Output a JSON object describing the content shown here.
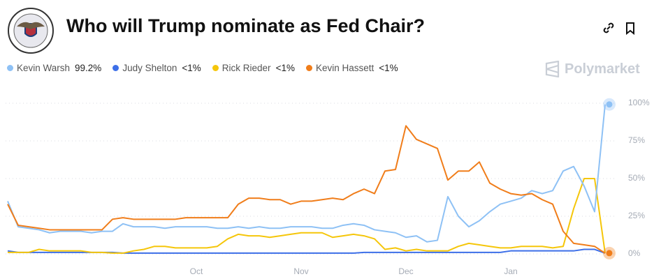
{
  "header": {
    "title": "Who will Trump nominate as Fed Chair?",
    "brand": "Polymarket"
  },
  "chart_data": {
    "type": "line",
    "categories": [
      null,
      null,
      null,
      null,
      null,
      null,
      null,
      null,
      null,
      null,
      null,
      null,
      null,
      null,
      null,
      null,
      null,
      null,
      "Oct",
      null,
      null,
      null,
      null,
      null,
      null,
      null,
      null,
      null,
      "Nov",
      null,
      null,
      null,
      null,
      null,
      null,
      null,
      null,
      null,
      "Dec",
      null,
      null,
      null,
      null,
      null,
      null,
      null,
      null,
      null,
      "Jan",
      null,
      null,
      null,
      null,
      null,
      null,
      null,
      null,
      null
    ],
    "series": [
      {
        "name": "Kevin Warsh",
        "value_label": "99.2%",
        "color": "#8ec1f5",
        "values": [
          35,
          18,
          17,
          16,
          14,
          15,
          15,
          15,
          14,
          15,
          15,
          20,
          18,
          18,
          18,
          17,
          18,
          18,
          18,
          18,
          17,
          17,
          18,
          17,
          18,
          17,
          17,
          18,
          18,
          18,
          17,
          17,
          19,
          20,
          19,
          16,
          15,
          14,
          11,
          12,
          8,
          9,
          38,
          25,
          18,
          22,
          28,
          33,
          35,
          37,
          42,
          40,
          42,
          55,
          58,
          45,
          28,
          99.2
        ]
      },
      {
        "name": "Judy Shelton",
        "value_label": "<1%",
        "color": "#3d6fe8",
        "values": [
          2,
          1,
          1,
          1,
          1,
          1,
          1,
          1,
          1,
          1,
          1,
          0.5,
          0.5,
          0.5,
          0.5,
          0.5,
          0.5,
          0.5,
          0.5,
          0.5,
          0.5,
          0.5,
          0.5,
          0.5,
          0.5,
          0.5,
          0.5,
          0.5,
          0.5,
          0.5,
          0.5,
          0.5,
          0.5,
          0.5,
          1,
          1,
          1,
          1,
          1,
          1,
          1,
          1,
          1,
          1,
          1,
          1,
          1,
          1,
          2,
          2,
          2,
          2,
          2,
          2,
          2,
          3,
          3,
          0.5
        ]
      },
      {
        "name": "Rick Rieder",
        "value_label": "<1%",
        "color": "#f5c60a",
        "values": [
          1,
          1,
          1,
          3,
          2,
          2,
          2,
          2,
          1,
          1,
          0.5,
          0.5,
          2,
          3,
          5,
          5,
          4,
          4,
          4,
          4,
          5,
          10,
          13,
          12,
          12,
          11,
          12,
          13,
          14,
          14,
          14,
          11,
          12,
          13,
          12,
          10,
          3,
          4,
          2,
          3,
          2,
          2,
          2,
          5,
          7,
          6,
          5,
          4,
          4,
          5,
          5,
          5,
          4,
          5,
          30,
          50,
          50,
          0.5
        ]
      },
      {
        "name": "Kevin Hassett",
        "value_label": "<1%",
        "color": "#f07d1a",
        "values": [
          33,
          19,
          18,
          17,
          16,
          16,
          16,
          16,
          16,
          16,
          23,
          24,
          23,
          23,
          23,
          23,
          23,
          24,
          24,
          24,
          24,
          24,
          33,
          37,
          37,
          36,
          36,
          33,
          35,
          35,
          36,
          37,
          36,
          40,
          43,
          40,
          55,
          56,
          85,
          76,
          73,
          70,
          49,
          55,
          55,
          61,
          47,
          43,
          40,
          39,
          40,
          36,
          33,
          15,
          7,
          6,
          5,
          0.5
        ]
      }
    ],
    "ylim": [
      0,
      100
    ],
    "yticks": [
      {
        "value": 0,
        "label": "0%"
      },
      {
        "value": 25,
        "label": "25%"
      },
      {
        "value": 50,
        "label": "50%"
      },
      {
        "value": 75,
        "label": "75%"
      },
      {
        "value": 100,
        "label": "100%"
      }
    ],
    "grid": true
  }
}
